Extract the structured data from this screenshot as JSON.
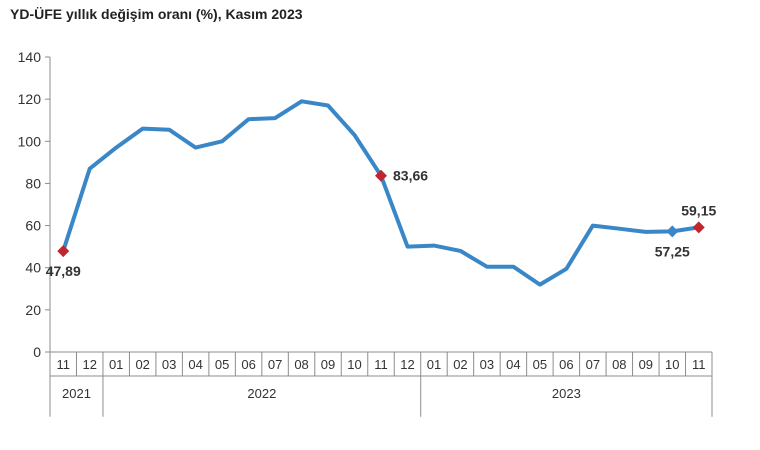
{
  "title": "YD-ÜFE yıllık değişim oranı (%), Kasım 2023",
  "chart_data": {
    "type": "line",
    "title": "YD-ÜFE yıllık değişim oranı (%), Kasım 2023",
    "xlabel": "",
    "ylabel": "",
    "ylim": [
      0,
      140
    ],
    "yticks": [
      0,
      20,
      40,
      60,
      80,
      100,
      120,
      140
    ],
    "grid": false,
    "categories": [
      "11",
      "12",
      "01",
      "02",
      "03",
      "04",
      "05",
      "06",
      "07",
      "08",
      "09",
      "10",
      "11",
      "12",
      "01",
      "02",
      "03",
      "04",
      "05",
      "06",
      "07",
      "08",
      "09",
      "10",
      "11"
    ],
    "year_groups": [
      {
        "label": "2021",
        "start": 0,
        "end": 1
      },
      {
        "label": "2022",
        "start": 2,
        "end": 13
      },
      {
        "label": "2023",
        "start": 14,
        "end": 24
      }
    ],
    "series": [
      {
        "values": [
          47.89,
          87,
          97,
          106,
          105.5,
          97,
          100,
          110.5,
          111,
          119,
          117,
          103,
          83.66,
          50,
          50.5,
          48,
          40.5,
          40.5,
          32,
          39.5,
          60,
          58.5,
          57,
          57.25,
          59.15
        ],
        "color": "#3a87c8"
      }
    ],
    "markers": [
      {
        "index": 0,
        "label": "47,89",
        "color": "#c0262d",
        "label_pos": "below"
      },
      {
        "index": 12,
        "label": "83,66",
        "color": "#c0262d",
        "label_pos": "right"
      },
      {
        "index": 23,
        "label": "57,25",
        "color": "#3a87c8",
        "label_pos": "below"
      },
      {
        "index": 24,
        "label": "59,15",
        "color": "#c0262d",
        "label_pos": "above"
      }
    ]
  }
}
